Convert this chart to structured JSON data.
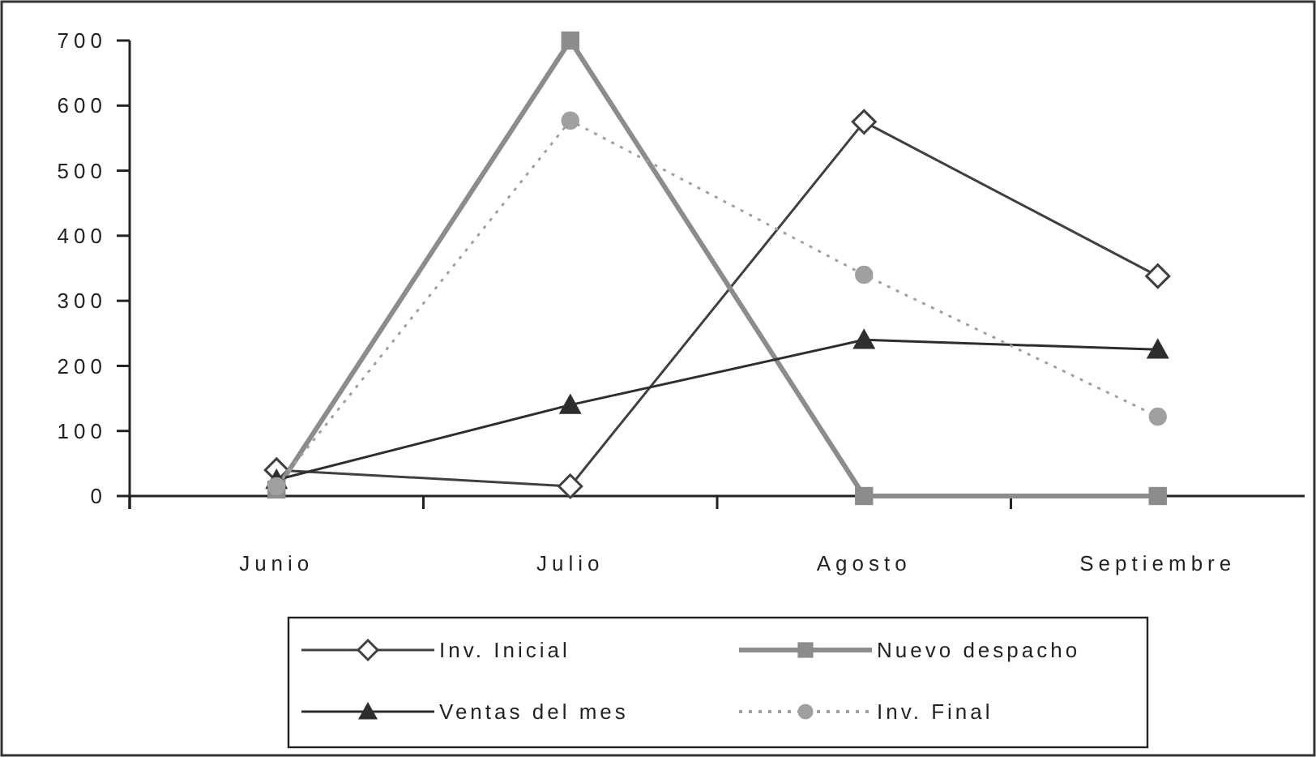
{
  "chart_data": {
    "type": "line",
    "categories": [
      "Junio",
      "Julio",
      "Agosto",
      "Septiembre"
    ],
    "series": [
      {
        "name": "Inv. Inicial",
        "color": "#404040",
        "values": [
          40,
          15,
          575,
          338
        ],
        "marker": "diamond",
        "line_style": "solid"
      },
      {
        "name": "Nuevo despacho",
        "color": "#8c8c8c",
        "values": [
          10,
          700,
          0,
          0
        ],
        "marker": "square",
        "line_style": "solid"
      },
      {
        "name": "Ventas del mes",
        "color": "#2e2e2e",
        "values": [
          25,
          140,
          240,
          225
        ],
        "marker": "triangle",
        "line_style": "solid"
      },
      {
        "name": "Inv. Final",
        "color": "#a0a0a0",
        "values": [
          15,
          577,
          340,
          122
        ],
        "marker": "circle",
        "line_style": "dotted"
      }
    ],
    "ylim": [
      0,
      700
    ],
    "yticks": [
      0,
      100,
      200,
      300,
      400,
      500,
      600,
      700
    ],
    "grid": false,
    "legend": "bottom"
  }
}
